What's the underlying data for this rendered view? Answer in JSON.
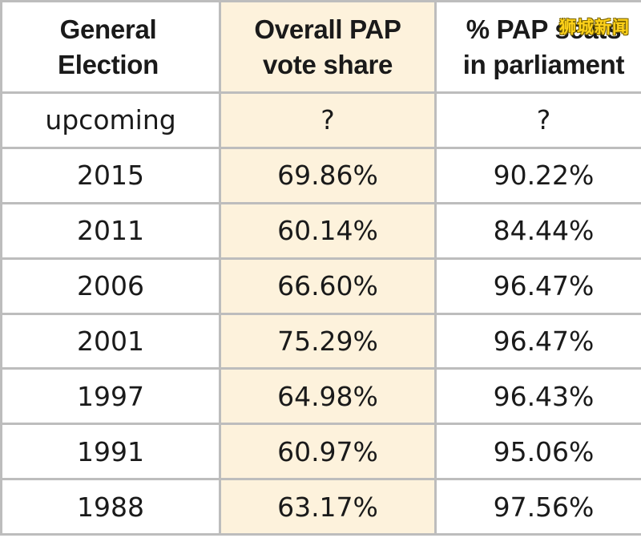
{
  "chart_data": {
    "type": "table",
    "columns": [
      "General\nElection",
      "Overall PAP\nvote share",
      "% PAP seats\nin parliament"
    ],
    "rows": [
      [
        "upcoming",
        "?",
        "?"
      ],
      [
        "2015",
        "69.86%",
        "90.22%"
      ],
      [
        "2011",
        "60.14%",
        "84.44%"
      ],
      [
        "2006",
        "66.60%",
        "96.47%"
      ],
      [
        "2001",
        "75.29%",
        "96.47%"
      ],
      [
        "1997",
        "64.98%",
        "96.43%"
      ],
      [
        "1991",
        "60.97%",
        "95.06%"
      ],
      [
        "1988",
        "63.17%",
        "97.56%"
      ]
    ],
    "highlight_column_color": "#fdf2dc",
    "grid_color": "#bdbdbd"
  },
  "header": {
    "col1": [
      "General",
      "Election"
    ],
    "col2": [
      "Overall PAP",
      "vote share"
    ],
    "col3": [
      "% PAP seats",
      "in parliament"
    ]
  },
  "watermark": {
    "text": "狮城新闻",
    "color": "#ffd21a"
  }
}
